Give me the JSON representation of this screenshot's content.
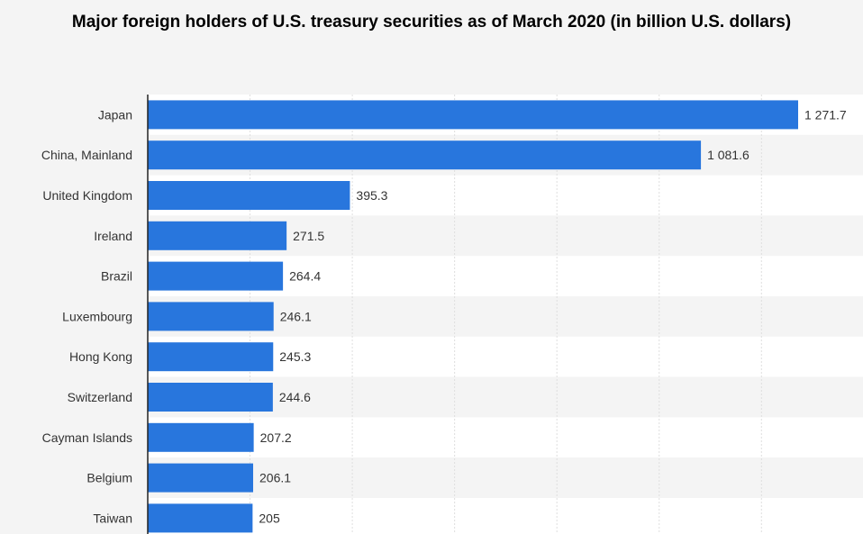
{
  "chart_data": {
    "type": "bar",
    "orientation": "horizontal",
    "title": "Major foreign holders of U.S. treasury securities as of March 2020 (in billion U.S. dollars)",
    "xlabel": "",
    "ylabel": "",
    "categories": [
      "Japan",
      "China, Mainland",
      "United Kingdom",
      "Ireland",
      "Brazil",
      "Luxembourg",
      "Hong Kong",
      "Switzerland",
      "Cayman Islands",
      "Belgium",
      "Taiwan"
    ],
    "values": [
      1271.7,
      1081.6,
      395.3,
      271.5,
      264.4,
      246.1,
      245.3,
      244.6,
      207.2,
      206.1,
      205
    ],
    "value_labels": [
      "1 271.7",
      "1 081.6",
      "395.3",
      "271.5",
      "264.4",
      "246.1",
      "245.3",
      "244.6",
      "207.2",
      "206.1",
      "205"
    ],
    "xlim": [
      0,
      1400
    ],
    "grid": true,
    "colors": {
      "bar": "#2876dd",
      "row_a": "#ffffff",
      "row_b": "#f4f4f4",
      "grid": "#dedede",
      "axis": "#222222"
    }
  }
}
